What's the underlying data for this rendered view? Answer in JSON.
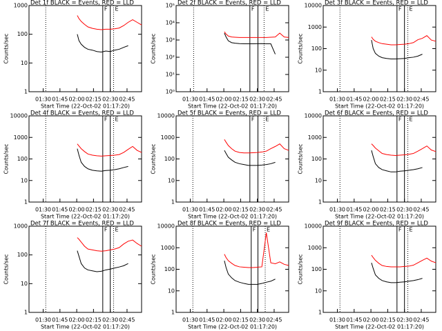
{
  "chart_data": [
    {
      "type": "line",
      "title": "Det 1f BLACK = Events, RED = LLD",
      "xlabel": "Start Time (22-Oct-02 01:17:20)",
      "ylabel": "Counts/sec",
      "log_y": true,
      "x": [
        120.5,
        122,
        124,
        127,
        130,
        134,
        138,
        142,
        146,
        150,
        154,
        158,
        162,
        166,
        170,
        174,
        178
      ],
      "xlim": [
        77.33,
        178
      ],
      "xticks": [
        {
          "value": 90,
          "label": "01:30"
        },
        {
          "value": 105,
          "label": "01:45"
        },
        {
          "value": 120,
          "label": "02:00"
        },
        {
          "value": 135,
          "label": "02:15"
        },
        {
          "value": 150,
          "label": "02:30"
        },
        {
          "value": 165,
          "label": "02:45"
        }
      ],
      "ylim": [
        1,
        1000
      ],
      "yticks": [
        1,
        10,
        100,
        1000
      ],
      "series": [
        {
          "name": "BLACK = Events",
          "color": "#000000",
          "values": [
            100,
            60,
            45,
            35,
            30,
            28,
            25,
            24,
            26,
            25,
            28,
            30,
            35,
            40,
            null,
            null,
            null
          ]
        },
        {
          "name": "RED = LLD",
          "color": "#ff0000",
          "values": [
            450,
            350,
            280,
            220,
            180,
            160,
            150,
            145,
            150,
            150,
            155,
            165,
            200,
            260,
            320,
            260,
            210
          ]
        }
      ],
      "dotted_lines": [
        92.3,
        153
      ],
      "solid_lines": [
        143.3,
        150
      ],
      "annotations": [
        "F",
        "E"
      ]
    },
    {
      "type": "line",
      "title": "Det 2f BLACK = Events, RED = LLD",
      "xlabel": "Start Time (22-Oct-02 01:17:20)",
      "ylabel": "Counts/sec",
      "log_y": true,
      "x": [
        120.5,
        122,
        124,
        127,
        130,
        134,
        138,
        142,
        146,
        150,
        154,
        158,
        162,
        166,
        170,
        174,
        178
      ],
      "xlim": [
        77.33,
        178
      ],
      "xticks": [
        {
          "value": 90,
          "label": "01:30"
        },
        {
          "value": 105,
          "label": "01:45"
        },
        {
          "value": 120,
          "label": "02:00"
        },
        {
          "value": 135,
          "label": "02:15"
        },
        {
          "value": 150,
          "label": "02:30"
        },
        {
          "value": 165,
          "label": "02:45"
        }
      ],
      "ylim": [
        1,
        100000
      ],
      "yticks": [
        {
          "value": 1,
          "label": "10⁰"
        },
        {
          "value": 10,
          "label": "10¹"
        },
        {
          "value": 100,
          "label": "10²"
        },
        {
          "value": 1000,
          "label": "10³"
        },
        {
          "value": 10000,
          "label": "10⁴"
        },
        {
          "value": 100000,
          "label": "10⁵"
        }
      ],
      "series": [
        {
          "name": "BLACK = Events",
          "color": "#000000",
          "values": [
            2500,
            1500,
            900,
            700,
            650,
            620,
            600,
            600,
            600,
            610,
            620,
            600,
            600,
            150,
            null,
            null,
            null
          ]
        },
        {
          "name": "RED = LLD",
          "color": "#ff0000",
          "values": [
            3000,
            2200,
            1700,
            1500,
            1450,
            1400,
            1400,
            1400,
            1400,
            1400,
            1400,
            1400,
            1450,
            1500,
            2500,
            1500,
            1400
          ]
        }
      ],
      "dotted_lines": [
        93,
        156
      ],
      "solid_lines": [
        143.3,
        150.5
      ],
      "annotations": [
        "F",
        "E"
      ]
    },
    {
      "type": "line",
      "title": "Det 3f BLACK = Events, RED = LLD",
      "xlabel": "Start Time (22-Oct-02 01:17:20)",
      "ylabel": "Counts/sec",
      "log_y": true,
      "x": [
        120.5,
        122,
        124,
        127,
        130,
        134,
        138,
        142,
        146,
        150,
        154,
        158,
        162,
        166,
        170,
        174,
        178
      ],
      "xlim": [
        77.33,
        178
      ],
      "xticks": [
        {
          "value": 90,
          "label": "01:30"
        },
        {
          "value": 105,
          "label": "01:45"
        },
        {
          "value": 120,
          "label": "02:00"
        },
        {
          "value": 135,
          "label": "02:15"
        },
        {
          "value": 150,
          "label": "02:30"
        },
        {
          "value": 165,
          "label": "02:45"
        }
      ],
      "ylim": [
        1,
        10000
      ],
      "yticks": [
        1,
        10,
        100,
        1000,
        10000
      ],
      "series": [
        {
          "name": "BLACK = Events",
          "color": "#000000",
          "values": [
            250,
            100,
            60,
            45,
            38,
            35,
            33,
            33,
            34,
            35,
            38,
            40,
            45,
            55,
            null,
            null,
            null
          ]
        },
        {
          "name": "RED = LLD",
          "color": "#ff0000",
          "values": [
            350,
            270,
            220,
            190,
            170,
            160,
            150,
            150,
            155,
            160,
            170,
            190,
            260,
            300,
            400,
            250,
            220
          ]
        }
      ],
      "dotted_lines": [
        92.3,
        153
      ],
      "solid_lines": [
        143.3,
        150
      ],
      "annotations": [
        "F",
        "E"
      ]
    },
    {
      "type": "line",
      "title": "Det 4f BLACK = Events, RED = LLD",
      "xlabel": "Start Time (22-Oct-02 01:17:20)",
      "ylabel": "Counts/sec",
      "log_y": true,
      "x": [
        120.5,
        122,
        124,
        127,
        130,
        134,
        138,
        142,
        146,
        150,
        154,
        158,
        162,
        166,
        170,
        174,
        178
      ],
      "xlim": [
        77.33,
        178
      ],
      "xticks": [
        {
          "value": 90,
          "label": "01:30"
        },
        {
          "value": 105,
          "label": "01:45"
        },
        {
          "value": 120,
          "label": "02:00"
        },
        {
          "value": 135,
          "label": "02:15"
        },
        {
          "value": 150,
          "label": "02:30"
        },
        {
          "value": 165,
          "label": "02:45"
        }
      ],
      "ylim": [
        1,
        10000
      ],
      "yticks": [
        1,
        10,
        100,
        1000,
        10000
      ],
      "series": [
        {
          "name": "BLACK = Events",
          "color": "#000000",
          "values": [
            300,
            150,
            70,
            45,
            35,
            30,
            28,
            27,
            29,
            30,
            32,
            35,
            40,
            45,
            null,
            null,
            null
          ]
        },
        {
          "name": "RED = LLD",
          "color": "#ff0000",
          "values": [
            500,
            400,
            300,
            220,
            170,
            150,
            140,
            135,
            140,
            145,
            150,
            160,
            200,
            280,
            380,
            250,
            200
          ]
        }
      ],
      "dotted_lines": [
        92.3,
        153
      ],
      "solid_lines": [
        143.3,
        150
      ],
      "annotations": [
        "F",
        "E"
      ]
    },
    {
      "type": "line",
      "title": "Det 5f BLACK = Events, RED = LLD",
      "xlabel": "Start Time (22-Oct-02 01:17:20)",
      "ylabel": "Counts/sec",
      "log_y": true,
      "x": [
        120.5,
        122,
        124,
        127,
        130,
        134,
        138,
        142,
        146,
        150,
        154,
        158,
        162,
        166,
        170,
        174,
        178
      ],
      "xlim": [
        77.33,
        178
      ],
      "xticks": [
        {
          "value": 90,
          "label": "01:30"
        },
        {
          "value": 105,
          "label": "01:45"
        },
        {
          "value": 120,
          "label": "02:00"
        },
        {
          "value": 135,
          "label": "02:15"
        },
        {
          "value": 150,
          "label": "02:30"
        },
        {
          "value": 165,
          "label": "02:45"
        }
      ],
      "ylim": [
        1,
        10000
      ],
      "yticks": [
        1,
        10,
        100,
        1000,
        10000
      ],
      "series": [
        {
          "name": "BLACK = Events",
          "color": "#000000",
          "values": [
            250,
            180,
            120,
            90,
            70,
            60,
            55,
            50,
            50,
            50,
            52,
            55,
            60,
            70,
            null,
            null,
            null
          ]
        },
        {
          "name": "RED = LLD",
          "color": "#ff0000",
          "values": [
            800,
            600,
            420,
            300,
            230,
            200,
            190,
            190,
            195,
            200,
            210,
            230,
            300,
            380,
            500,
            300,
            250
          ]
        }
      ],
      "dotted_lines": [
        92.3,
        156
      ],
      "solid_lines": [
        143.3,
        150.5
      ],
      "annotations": [
        "F",
        "E"
      ]
    },
    {
      "type": "line",
      "title": "Det 6f BLACK = Events, RED = LLD",
      "xlabel": "Start Time (22-Oct-02 01:17:20)",
      "ylabel": "Counts/sec",
      "log_y": true,
      "x": [
        120.5,
        122,
        124,
        127,
        130,
        134,
        138,
        142,
        146,
        150,
        154,
        158,
        162,
        166,
        170,
        174,
        178
      ],
      "xlim": [
        77.33,
        178
      ],
      "xticks": [
        {
          "value": 90,
          "label": "01:30"
        },
        {
          "value": 105,
          "label": "01:45"
        },
        {
          "value": 120,
          "label": "02:00"
        },
        {
          "value": 135,
          "label": "02:15"
        },
        {
          "value": 150,
          "label": "02:30"
        },
        {
          "value": 165,
          "label": "02:45"
        }
      ],
      "ylim": [
        1,
        10000
      ],
      "yticks": [
        1,
        10,
        100,
        1000,
        10000
      ],
      "series": [
        {
          "name": "BLACK = Events",
          "color": "#000000",
          "values": [
            250,
            130,
            60,
            40,
            32,
            28,
            25,
            25,
            27,
            28,
            30,
            32,
            35,
            40,
            null,
            null,
            null
          ]
        },
        {
          "name": "RED = LLD",
          "color": "#ff0000",
          "values": [
            500,
            420,
            320,
            240,
            180,
            160,
            150,
            145,
            150,
            155,
            165,
            180,
            230,
            300,
            400,
            260,
            220
          ]
        }
      ],
      "dotted_lines": [
        92.3,
        153
      ],
      "solid_lines": [
        143.3,
        150
      ],
      "annotations": [
        "F",
        "E"
      ]
    },
    {
      "type": "line",
      "title": "Det 7f BLACK = Events, RED = LLD",
      "xlabel": "Start Time (22-Oct-02 01:17:20)",
      "ylabel": "Counts/sec",
      "log_y": true,
      "x": [
        120.5,
        122,
        124,
        127,
        130,
        134,
        138,
        142,
        146,
        150,
        154,
        158,
        162,
        166,
        170,
        174,
        178
      ],
      "xlim": [
        77.33,
        178
      ],
      "xticks": [
        {
          "value": 90,
          "label": "01:30"
        },
        {
          "value": 105,
          "label": "01:45"
        },
        {
          "value": 120,
          "label": "02:00"
        },
        {
          "value": 135,
          "label": "02:15"
        },
        {
          "value": 150,
          "label": "02:30"
        },
        {
          "value": 165,
          "label": "02:45"
        }
      ],
      "ylim": [
        1,
        1000
      ],
      "yticks": [
        1,
        10,
        100,
        1000
      ],
      "series": [
        {
          "name": "BLACK = Events",
          "color": "#000000",
          "values": [
            140,
            90,
            50,
            35,
            30,
            28,
            26,
            27,
            30,
            32,
            35,
            38,
            42,
            50,
            null,
            null,
            null
          ]
        },
        {
          "name": "RED = LLD",
          "color": "#ff0000",
          "values": [
            400,
            350,
            280,
            200,
            160,
            150,
            140,
            135,
            140,
            150,
            160,
            180,
            240,
            300,
            330,
            250,
            200
          ]
        }
      ],
      "dotted_lines": [
        92.3,
        153
      ],
      "solid_lines": [
        143.3,
        150
      ],
      "annotations": [
        "F",
        "E"
      ]
    },
    {
      "type": "line",
      "title": "Det 8f BLACK = Events, RED = LLD",
      "xlabel": "Start Time (22-Oct-02 01:17:20)",
      "ylabel": "Counts/sec",
      "log_y": true,
      "x": [
        120.5,
        122,
        124,
        127,
        130,
        134,
        138,
        142,
        146,
        150,
        154,
        158,
        162,
        166,
        170,
        174,
        178
      ],
      "xlim": [
        77.33,
        178
      ],
      "xticks": [
        {
          "value": 90,
          "label": "01:30"
        },
        {
          "value": 105,
          "label": "01:45"
        },
        {
          "value": 120,
          "label": "02:00"
        },
        {
          "value": 135,
          "label": "02:15"
        },
        {
          "value": 150,
          "label": "02:30"
        },
        {
          "value": 165,
          "label": "02:45"
        }
      ],
      "ylim": [
        1,
        10000
      ],
      "yticks": [
        1,
        10,
        100,
        1000,
        10000
      ],
      "series": [
        {
          "name": "BLACK = Events",
          "color": "#000000",
          "values": [
            250,
            120,
            60,
            40,
            30,
            25,
            22,
            20,
            20,
            20,
            22,
            25,
            28,
            35,
            null,
            null,
            null
          ]
        },
        {
          "name": "RED = LLD",
          "color": "#ff0000",
          "values": [
            500,
            350,
            250,
            190,
            150,
            130,
            125,
            120,
            120,
            125,
            130,
            5000,
            200,
            180,
            220,
            170,
            150
          ]
        }
      ],
      "dotted_lines": [
        92.3,
        157
      ],
      "solid_lines": [
        144.5,
        150.5
      ],
      "annotations": [
        "F",
        "E"
      ]
    },
    {
      "type": "line",
      "title": "Det 9f BLACK = Events, RED = LLD",
      "xlabel": "Start Time (22-Oct-02 01:17:20)",
      "ylabel": "Counts/sec",
      "log_y": true,
      "x": [
        120.5,
        122,
        124,
        127,
        130,
        134,
        138,
        142,
        146,
        150,
        154,
        158,
        162,
        166,
        170,
        174,
        178
      ],
      "xlim": [
        77.33,
        178
      ],
      "xticks": [
        {
          "value": 90,
          "label": "01:30"
        },
        {
          "value": 105,
          "label": "01:45"
        },
        {
          "value": 120,
          "label": "02:00"
        },
        {
          "value": 135,
          "label": "02:15"
        },
        {
          "value": 150,
          "label": "02:30"
        },
        {
          "value": 165,
          "label": "02:45"
        }
      ],
      "ylim": [
        1,
        10000
      ],
      "yticks": [
        1,
        10,
        100,
        1000,
        10000
      ],
      "series": [
        {
          "name": "BLACK = Events",
          "color": "#000000",
          "values": [
            200,
            110,
            55,
            38,
            30,
            26,
            24,
            24,
            25,
            26,
            28,
            30,
            33,
            38,
            null,
            null,
            null
          ]
        },
        {
          "name": "RED = LLD",
          "color": "#ff0000",
          "values": [
            450,
            350,
            260,
            190,
            150,
            135,
            130,
            130,
            130,
            135,
            140,
            155,
            200,
            260,
            330,
            240,
            200
          ]
        }
      ],
      "dotted_lines": [
        92.3,
        153
      ],
      "solid_lines": [
        143.3,
        150
      ],
      "annotations": [
        "F",
        "E"
      ]
    }
  ]
}
